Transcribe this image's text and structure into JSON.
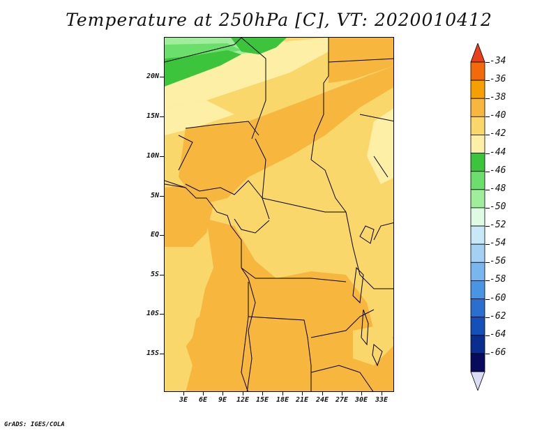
{
  "title": "Temperature at 250hPa [C], VT: 2020010412",
  "credit": "GrADS: IGES/COLA",
  "axes": {
    "lat_labels": [
      "20N",
      "15N",
      "10N",
      "5N",
      "EQ",
      "5S",
      "10S",
      "15S"
    ],
    "lon_labels": [
      "3E",
      "6E",
      "9E",
      "12E",
      "15E",
      "18E",
      "21E",
      "24E",
      "27E",
      "30E",
      "33E"
    ]
  },
  "colorbar": {
    "labels": [
      "-34",
      "-36",
      "-38",
      "-40",
      "-42",
      "-44",
      "-46",
      "-48",
      "-50",
      "-52",
      "-54",
      "-56",
      "-58",
      "-60",
      "-62",
      "-64",
      "-66"
    ],
    "colors": [
      "#e8411a",
      "#f26a0a",
      "#f5a000",
      "#f7b63e",
      "#fad76a",
      "#fdf0a6",
      "#3cc43c",
      "#6bde6b",
      "#a0ee9c",
      "#dffbe3",
      "#c8e8f8",
      "#a4d0f4",
      "#7ab6ee",
      "#4a94e4",
      "#2a6fd0",
      "#1450b8",
      "#0a2e90",
      "#080b5c",
      "#dcdcf4"
    ]
  },
  "fields": {
    "colors": {
      "c36": "#f5a000",
      "c38": "#f7b63e",
      "c40": "#fad76a",
      "c42": "#fdf0a6",
      "c44": "#3cc43c",
      "c46": "#6bde6b",
      "c48": "#a0ee9c"
    }
  }
}
